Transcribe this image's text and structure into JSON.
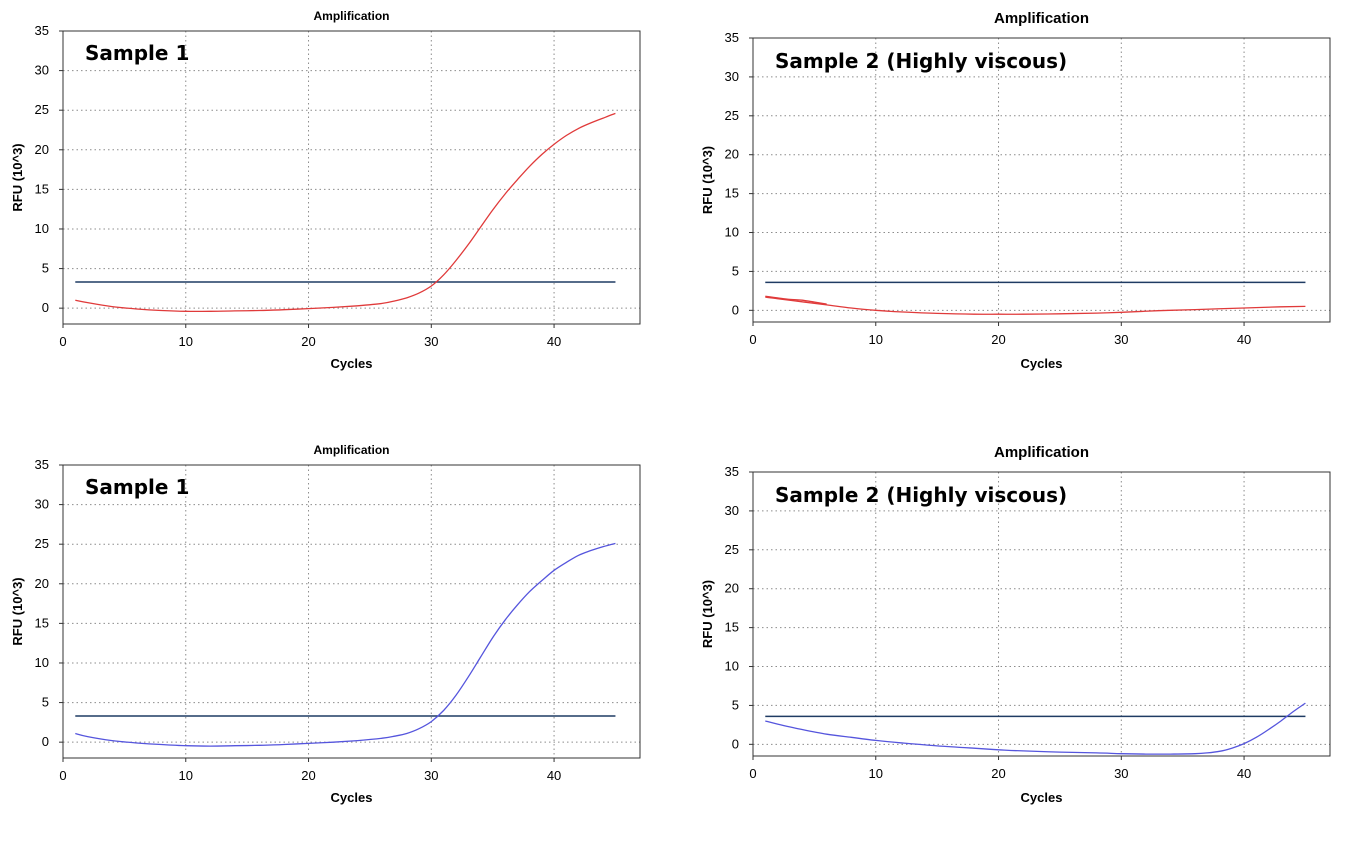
{
  "chart_data": [
    {
      "type": "line",
      "title": "Amplification",
      "annotation": "Sample 1",
      "xlabel": "Cycles",
      "ylabel": "RFU (10^3)",
      "xlim": [
        0,
        47
      ],
      "ylim": [
        -2,
        35
      ],
      "xticks": [
        0,
        10,
        20,
        30,
        40
      ],
      "yticks": [
        0,
        5,
        10,
        15,
        20,
        25,
        30,
        35
      ],
      "grid": true,
      "threshold": 3.3,
      "threshold_color": "#1f3b63",
      "series_color": "#e03a3a",
      "series": [
        {
          "x": [
            1,
            2,
            4,
            6,
            8,
            10,
            12,
            14,
            16,
            18,
            20,
            22,
            24,
            26,
            27,
            28,
            29,
            30,
            31,
            32,
            33,
            34,
            35,
            36,
            37,
            38,
            39,
            40,
            41,
            42,
            43,
            44,
            45
          ],
          "values": [
            1.0,
            0.7,
            0.2,
            -0.1,
            -0.3,
            -0.4,
            -0.4,
            -0.35,
            -0.3,
            -0.2,
            -0.05,
            0.1,
            0.3,
            0.6,
            0.9,
            1.3,
            1.9,
            2.8,
            4.2,
            6.0,
            8.0,
            10.2,
            12.4,
            14.4,
            16.2,
            17.9,
            19.4,
            20.7,
            21.8,
            22.7,
            23.4,
            24.0,
            24.6
          ]
        }
      ]
    },
    {
      "type": "line",
      "title": "Amplification",
      "annotation": "Sample 2 (Highly viscous)",
      "xlabel": "Cycles",
      "ylabel": "RFU (10^3)",
      "xlim": [
        0,
        47
      ],
      "ylim": [
        -1.5,
        35
      ],
      "xticks": [
        0,
        10,
        20,
        30,
        40
      ],
      "yticks": [
        0,
        5,
        10,
        15,
        20,
        25,
        30,
        35
      ],
      "grid": true,
      "threshold": 3.6,
      "threshold_color": "#1f3b63",
      "series_color": "#e03a3a",
      "series": [
        {
          "x": [
            1,
            2,
            4,
            6,
            8,
            10,
            12,
            15,
            18,
            20,
            22,
            25,
            28,
            30,
            33,
            36,
            40,
            43,
            45
          ],
          "values": [
            1.7,
            1.5,
            1.1,
            0.7,
            0.3,
            0.0,
            -0.2,
            -0.4,
            -0.5,
            -0.5,
            -0.5,
            -0.45,
            -0.35,
            -0.25,
            -0.05,
            0.1,
            0.3,
            0.45,
            0.5
          ]
        },
        {
          "x": [
            1,
            2,
            3,
            4,
            6
          ],
          "values": [
            1.8,
            1.6,
            1.4,
            1.3,
            0.8
          ]
        }
      ]
    },
    {
      "type": "line",
      "title": "Amplification",
      "annotation": "Sample 1",
      "xlabel": "Cycles",
      "ylabel": "RFU (10^3)",
      "xlim": [
        0,
        47
      ],
      "ylim": [
        -2,
        35
      ],
      "xticks": [
        0,
        10,
        20,
        30,
        40
      ],
      "yticks": [
        0,
        5,
        10,
        15,
        20,
        25,
        30,
        35
      ],
      "grid": true,
      "threshold": 3.3,
      "threshold_color": "#1f3b63",
      "series_color": "#5555dd",
      "series": [
        {
          "x": [
            1,
            2,
            4,
            6,
            8,
            10,
            12,
            14,
            16,
            18,
            20,
            22,
            24,
            26,
            27,
            28,
            29,
            30,
            31,
            32,
            33,
            34,
            35,
            36,
            37,
            38,
            39,
            40,
            41,
            42,
            43,
            44,
            45
          ],
          "values": [
            1.1,
            0.7,
            0.2,
            -0.1,
            -0.3,
            -0.45,
            -0.5,
            -0.45,
            -0.4,
            -0.3,
            -0.15,
            0.0,
            0.2,
            0.5,
            0.75,
            1.1,
            1.7,
            2.6,
            4.0,
            5.9,
            8.2,
            10.7,
            13.2,
            15.4,
            17.3,
            19.0,
            20.4,
            21.7,
            22.7,
            23.6,
            24.2,
            24.7,
            25.1
          ]
        }
      ]
    },
    {
      "type": "line",
      "title": "Amplification",
      "annotation": "Sample 2 (Highly viscous)",
      "xlabel": "Cycles",
      "ylabel": "RFU (10^3)",
      "xlim": [
        0,
        47
      ],
      "ylim": [
        -1.5,
        35
      ],
      "xticks": [
        0,
        10,
        20,
        30,
        40
      ],
      "yticks": [
        0,
        5,
        10,
        15,
        20,
        25,
        30,
        35
      ],
      "grid": true,
      "threshold": 3.6,
      "threshold_color": "#1f3b63",
      "series_color": "#5555dd",
      "series": [
        {
          "x": [
            1,
            2,
            4,
            6,
            8,
            10,
            12,
            15,
            18,
            20,
            22,
            25,
            28,
            30,
            32,
            34,
            36,
            37,
            38,
            39,
            40,
            41,
            42,
            43,
            44,
            45
          ],
          "values": [
            3.0,
            2.6,
            1.9,
            1.3,
            0.9,
            0.5,
            0.2,
            -0.2,
            -0.5,
            -0.7,
            -0.85,
            -1.0,
            -1.1,
            -1.2,
            -1.25,
            -1.25,
            -1.2,
            -1.1,
            -0.9,
            -0.5,
            0.1,
            0.9,
            1.9,
            3.0,
            4.2,
            5.3
          ]
        }
      ]
    }
  ]
}
